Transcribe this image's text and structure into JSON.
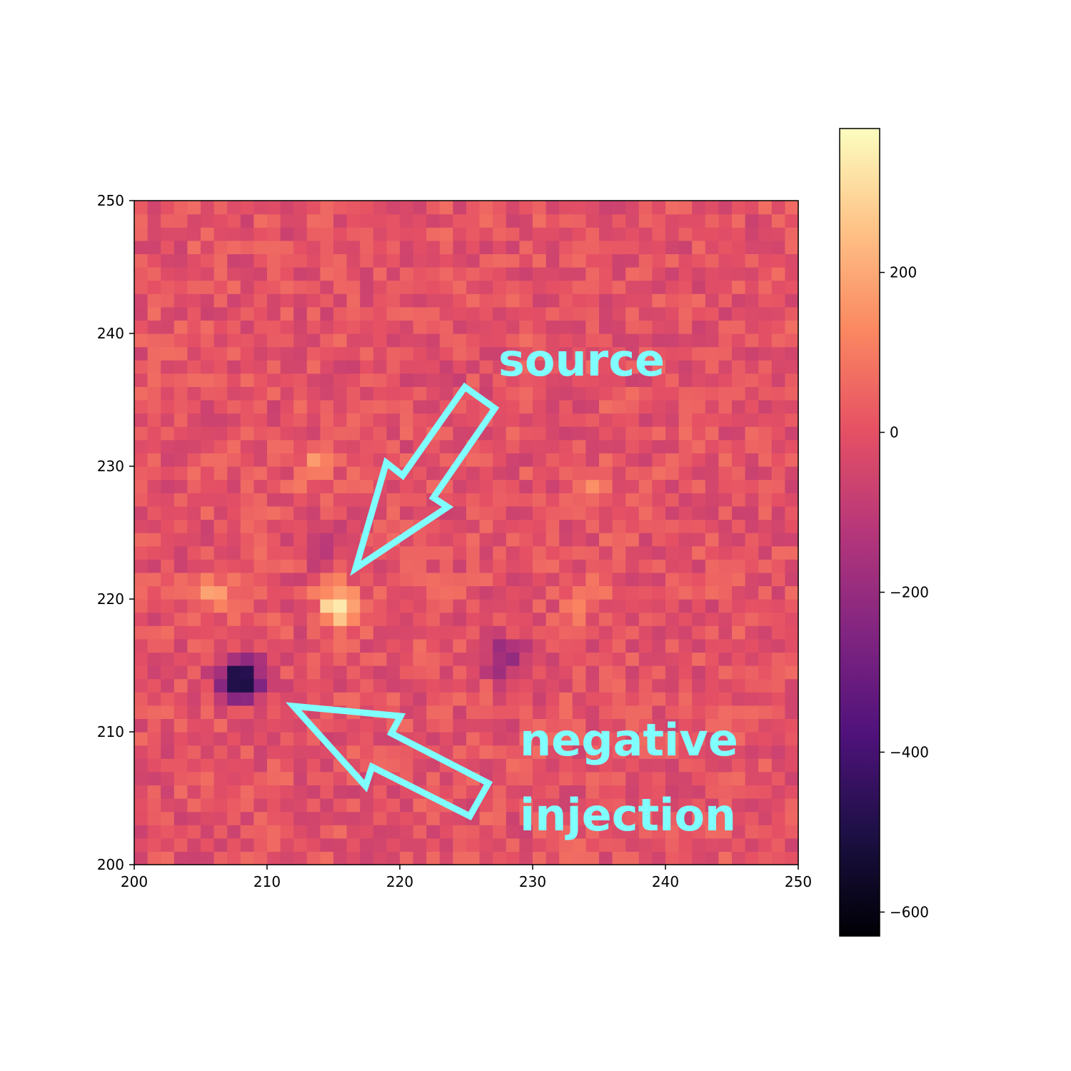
{
  "chart_data": {
    "type": "heatmap",
    "colormap": "magma",
    "title": "",
    "xlabel": "",
    "ylabel": "",
    "xlim": [
      200,
      250
    ],
    "ylim": [
      200,
      250
    ],
    "xticks": [
      200,
      210,
      220,
      230,
      240,
      250
    ],
    "yticks": [
      200,
      210,
      220,
      230,
      240,
      250
    ],
    "xtick_labels": [
      "200",
      "210",
      "220",
      "230",
      "240",
      "250"
    ],
    "ytick_labels": [
      "200",
      "210",
      "220",
      "230",
      "240",
      "250"
    ],
    "colorbar": {
      "range": [
        -630,
        380
      ],
      "ticks": [
        -600,
        -400,
        -200,
        0,
        200
      ],
      "tick_labels": [
        "−600",
        "−400",
        "−200",
        "0",
        "200"
      ]
    },
    "background_level": 0,
    "features": [
      {
        "kind": "bright",
        "name": "source",
        "center": [
          215.5,
          219.5
        ],
        "peak": 360
      },
      {
        "kind": "dark",
        "name": "negative injection",
        "center": [
          208,
          214
        ],
        "peak": -630
      },
      {
        "kind": "bright",
        "center": [
          206,
          220.5
        ],
        "peak": 160
      },
      {
        "kind": "dark",
        "center": [
          214,
          224
        ],
        "peak": -150
      },
      {
        "kind": "dark",
        "center": [
          228,
          215.5
        ],
        "peak": -230
      },
      {
        "kind": "dark",
        "center": [
          223,
          236.5
        ],
        "peak": -120
      },
      {
        "kind": "bright",
        "center": [
          213.5,
          230
        ],
        "peak": 130
      },
      {
        "kind": "bright",
        "center": [
          234.5,
          228
        ],
        "peak": 120
      },
      {
        "kind": "bright",
        "center": [
          234,
          220
        ],
        "peak": 110
      }
    ],
    "annotations": [
      {
        "text": "source",
        "color": "#80ffff"
      },
      {
        "text": "negative",
        "color": "#80ffff"
      },
      {
        "text": "injection",
        "color": "#80ffff"
      }
    ]
  }
}
